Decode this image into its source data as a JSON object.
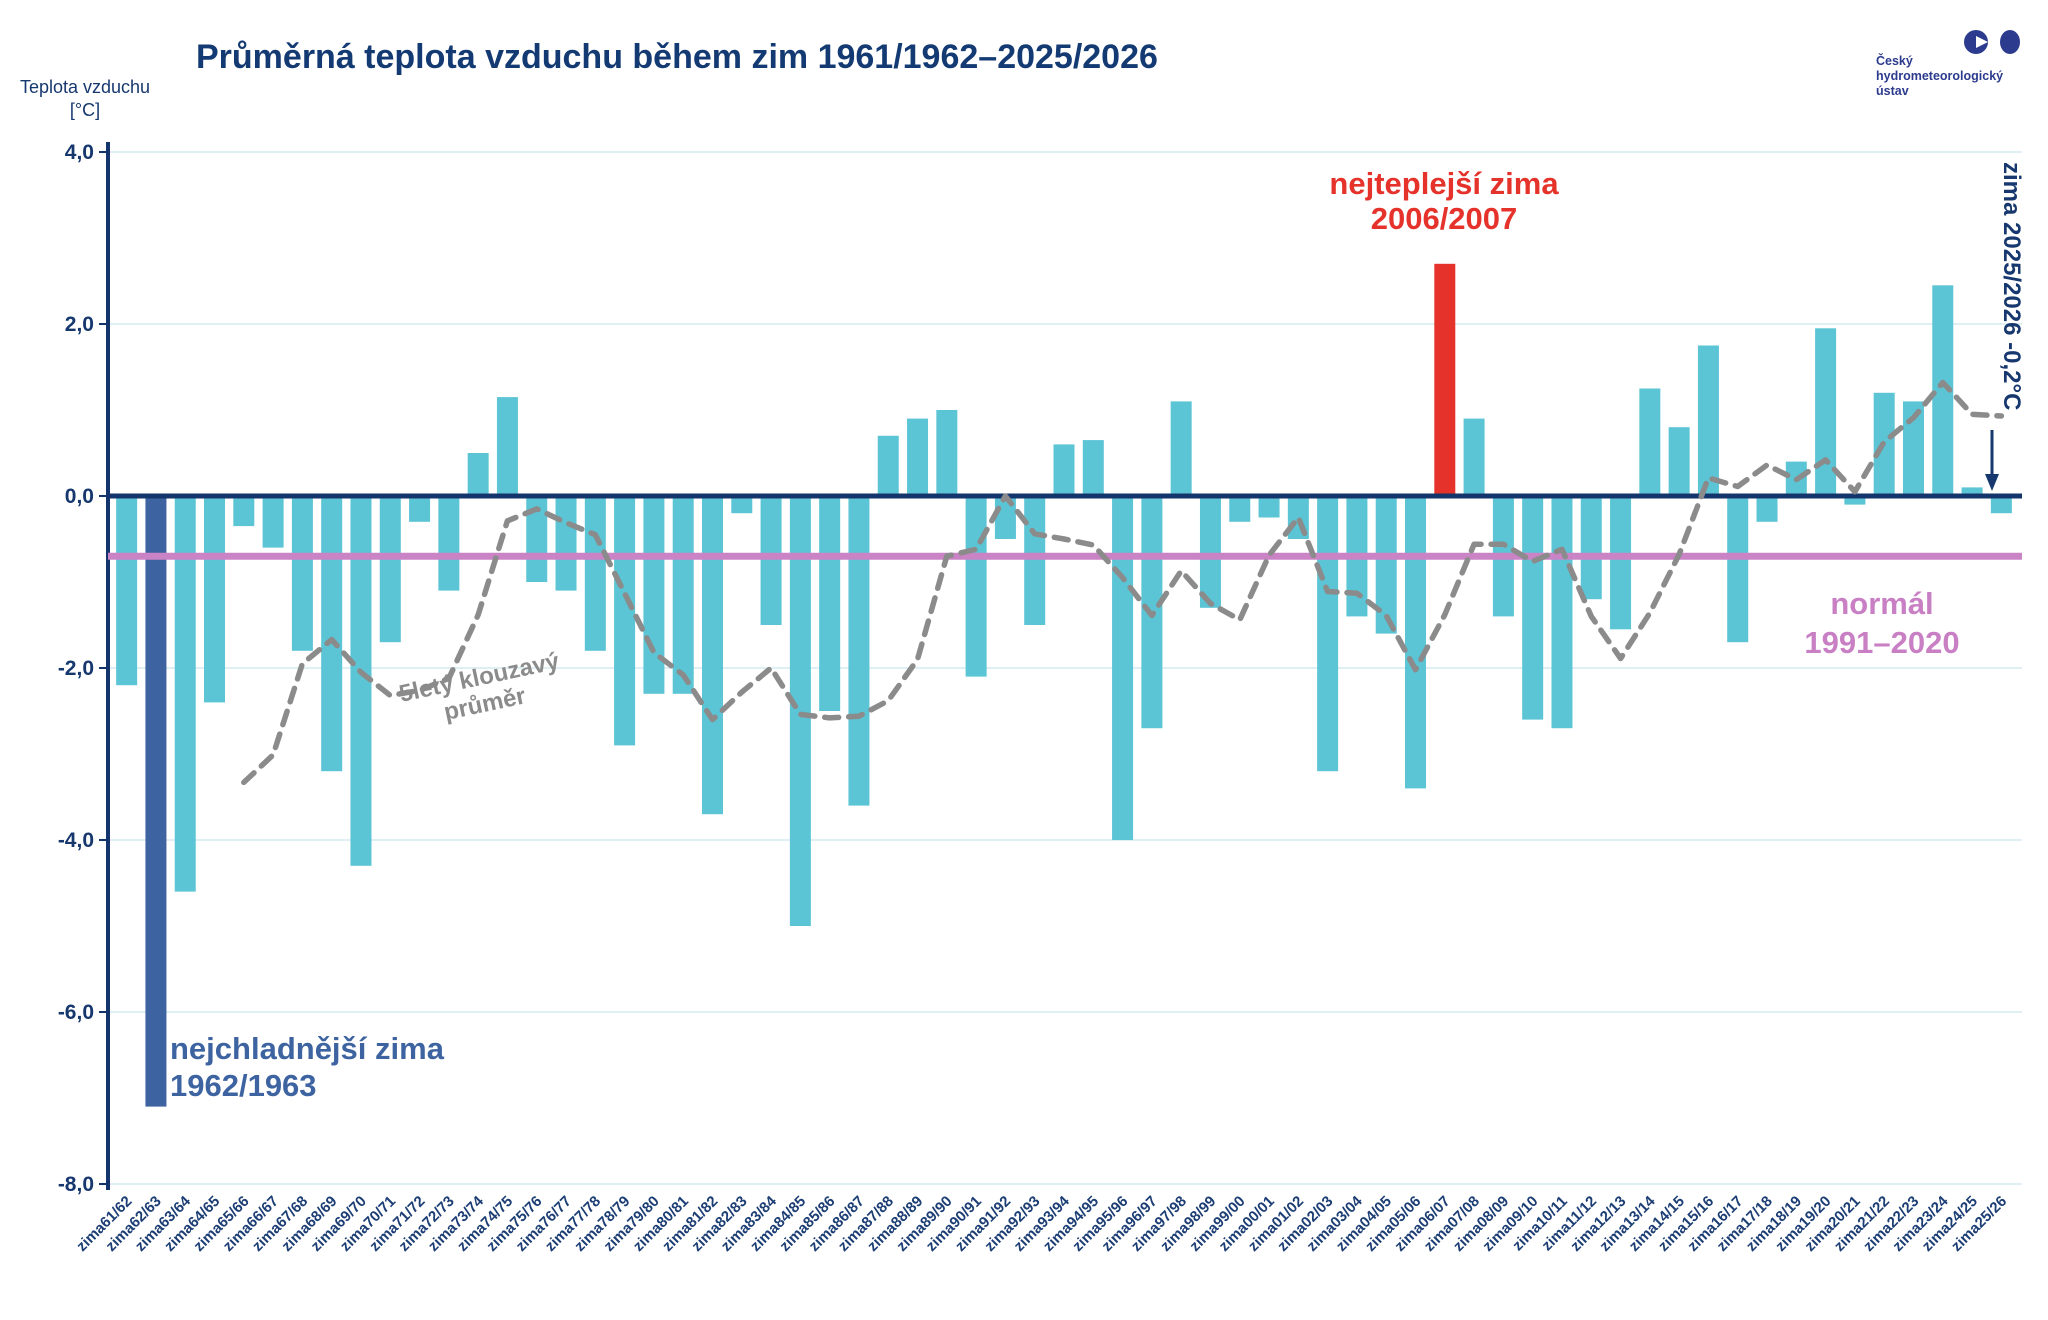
{
  "title": "Průměrná teplota vzduchu během zim 1961/1962–2025/2026",
  "y_axis": {
    "label_line1": "Teplota vzduchu",
    "label_line2": "[°C]",
    "ticks": [
      "4,0",
      "2,0",
      "0,0",
      "-2,0",
      "-4,0",
      "-6,0",
      "-8,0"
    ],
    "tick_values": [
      4,
      2,
      0,
      -2,
      -4,
      -6,
      -8
    ],
    "min": -8.0,
    "max": 4.0
  },
  "logo": {
    "line1": "Český",
    "line2": "hydrometeorologický",
    "line3": "ústav"
  },
  "annotations": {
    "warmest_line1": "nejteplejší zima",
    "warmest_line2": "2006/2007",
    "coldest_line1": "nejchladnější zima",
    "coldest_line2": "1962/1963",
    "normal_line1": "normál",
    "normal_line2": "1991–2020",
    "moving_avg_line1": "5letý klouzavý",
    "moving_avg_line2": "průměr",
    "last_winter_label": "zima 2025/2026  -0,2°C"
  },
  "colors": {
    "bar": "#5bc4d5",
    "bar_coldest": "#3d64a1",
    "bar_warmest": "#e5332b",
    "zero_line": "#14356b",
    "normal_line": "#ca84c6",
    "moving_avg_line": "#8b8b8b",
    "gridline": "#dff0f4",
    "axis_text": "#16386e",
    "x_label_text": "#1c3e74",
    "title_text": "#133a72",
    "logo_blue": "#2c3b8d"
  },
  "chart_data": {
    "type": "bar",
    "title": "Průměrná teplota vzduchu během zim 1961/1962–2025/2026",
    "ylabel": "Teplota vzduchu [°C]",
    "ylim": [
      -8.0,
      4.0
    ],
    "grid": true,
    "categories": [
      "zima61/62",
      "zima62/63",
      "zima63/64",
      "zima64/65",
      "zima65/66",
      "zima66/67",
      "zima67/68",
      "zima68/69",
      "zima69/70",
      "zima70/71",
      "zima71/72",
      "zima72/73",
      "zima73/74",
      "zima74/75",
      "zima75/76",
      "zima76/77",
      "zima77/78",
      "zima78/79",
      "zima79/80",
      "zima80/81",
      "zima81/82",
      "zima82/83",
      "zima83/84",
      "zima84/85",
      "zima85/86",
      "zima86/87",
      "zima87/88",
      "zima88/89",
      "zima89/90",
      "zima90/91",
      "zima91/92",
      "zima92/93",
      "zima93/94",
      "zima94/95",
      "zima95/96",
      "zima96/97",
      "zima97/98",
      "zima98/99",
      "zima99/00",
      "zima00/01",
      "zima01/02",
      "zima02/03",
      "zima03/04",
      "zima04/05",
      "zima05/06",
      "zima06/07",
      "zima07/08",
      "zima08/09",
      "zima09/10",
      "zima10/11",
      "zima11/12",
      "zima12/13",
      "zima13/14",
      "zima14/15",
      "zima15/16",
      "zima16/17",
      "zima17/18",
      "zima18/19",
      "zima19/20",
      "zima20/21",
      "zima21/22",
      "zima22/23",
      "zima23/24",
      "zima24/25",
      "zima25/26"
    ],
    "values": [
      -2.2,
      -7.1,
      -4.6,
      -2.4,
      -0.35,
      -0.6,
      -1.8,
      -3.2,
      -4.3,
      -1.7,
      -0.3,
      -1.1,
      0.5,
      1.15,
      -1.0,
      -1.1,
      -1.8,
      -2.9,
      -2.3,
      -2.3,
      -3.7,
      -0.2,
      -1.5,
      -5.0,
      -2.5,
      -3.6,
      0.7,
      0.9,
      1.0,
      -2.1,
      -0.5,
      -1.5,
      0.6,
      0.65,
      -4.0,
      -2.7,
      1.1,
      -1.3,
      -0.3,
      -0.25,
      -0.5,
      -3.2,
      -1.4,
      -1.6,
      -3.4,
      2.7,
      0.9,
      -1.4,
      -2.6,
      -2.7,
      -1.2,
      -1.55,
      1.25,
      0.8,
      1.75,
      -1.7,
      -0.3,
      0.4,
      1.95,
      -0.1,
      1.2,
      1.1,
      2.45,
      0.1,
      -0.2
    ],
    "highlight": {
      "coldest_index": 1,
      "coldest_value": -7.1,
      "warmest_index": 45,
      "warmest_value": 2.7,
      "last_value": -0.2
    },
    "reference_lines": [
      {
        "name": "normál 1991–2020",
        "value": -0.7,
        "style": "solid violet"
      },
      {
        "name": "5letý klouzavý průměr",
        "style": "dashed gray",
        "definition": "trailing 5-year moving average of values, first point at zima65/66"
      }
    ],
    "legend_position": "annotations-inline"
  }
}
